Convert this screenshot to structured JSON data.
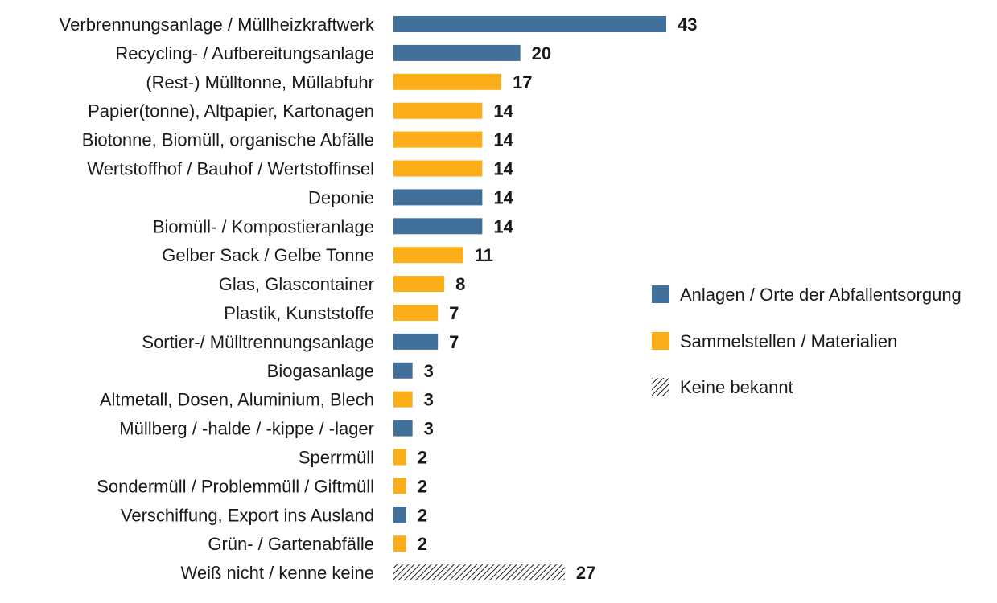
{
  "chart_data": {
    "type": "bar",
    "orientation": "horizontal",
    "categories": [
      "Verbrennungsanlage / Müllheizkraftwerk",
      "Recycling- / Aufbereitungsanlage",
      "(Rest-) Mülltonne, Müllabfuhr",
      "Papier(tonne), Altpapier, Kartonagen",
      "Biotonne, Biomüll, organische Abfälle",
      "Wertstoffhof / Bauhof / Wertstoffinsel",
      "Deponie",
      "Biomüll- / Kompostieranlage",
      "Gelber Sack / Gelbe Tonne",
      "Glas, Glascontainer",
      "Plastik, Kunststoffe",
      "Sortier-/ Mülltrennungsanlage",
      "Biogasanlage",
      "Altmetall, Dosen, Aluminium, Blech",
      "Müllberg / -halde / -kippe / -lager",
      "Sperrmüll",
      "Sondermüll / Problemmüll / Giftmüll",
      "Verschiffung, Export ins Ausland",
      "Grün- / Gartenabfälle",
      "Weiß nicht / kenne keine"
    ],
    "values": [
      43,
      20,
      17,
      14,
      14,
      14,
      14,
      14,
      11,
      8,
      7,
      7,
      3,
      3,
      3,
      2,
      2,
      2,
      2,
      27
    ],
    "group": [
      "anlagen",
      "anlagen",
      "sammel",
      "sammel",
      "sammel",
      "sammel",
      "anlagen",
      "anlagen",
      "sammel",
      "sammel",
      "sammel",
      "anlagen",
      "anlagen",
      "sammel",
      "anlagen",
      "sammel",
      "sammel",
      "anlagen",
      "sammel",
      "keine"
    ],
    "legend": [
      {
        "key": "anlagen",
        "label": "Anlagen / Orte der Abfallentsorgung",
        "color": "#41709b"
      },
      {
        "key": "sammel",
        "label": "Sammelstellen / Materialien",
        "color": "#fbae17"
      },
      {
        "key": "keine",
        "label": "Keine bekannt",
        "color": "hatched"
      }
    ],
    "legend_position": "right",
    "xlim": [
      0,
      43
    ],
    "grid": false,
    "title": "",
    "xlabel": "",
    "ylabel": ""
  }
}
